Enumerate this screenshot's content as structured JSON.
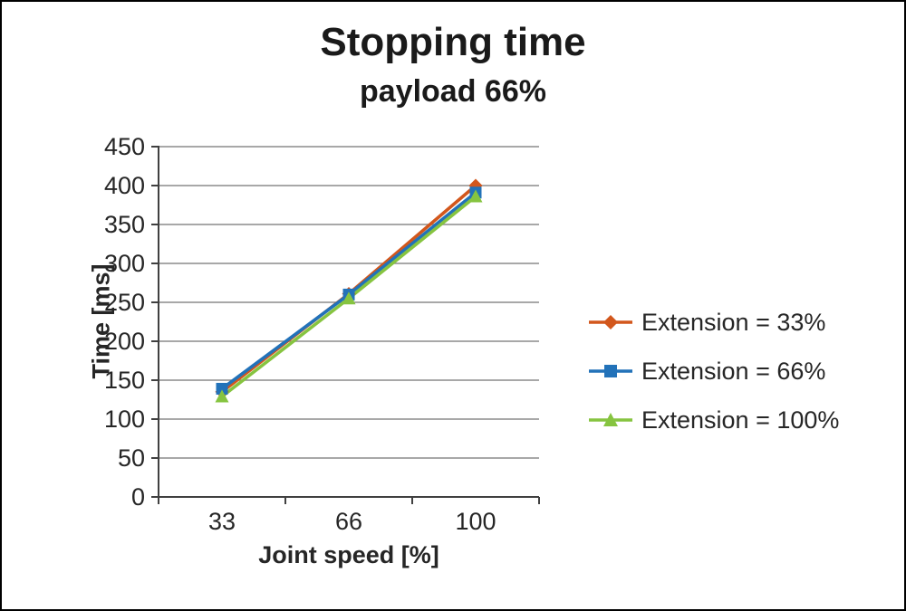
{
  "chart_data": {
    "type": "line",
    "title": "Stopping time",
    "subtitle": "payload 66%",
    "xlabel": "Joint speed [%]",
    "ylabel": "Time [ms]",
    "categories": [
      "33",
      "66",
      "100"
    ],
    "series": [
      {
        "name": "Extension = 33%",
        "marker": "diamond",
        "color": "#D2571C",
        "values": [
          135,
          261,
          400
        ]
      },
      {
        "name": "Extension = 66%",
        "marker": "square",
        "color": "#2272B9",
        "values": [
          139,
          260,
          391
        ]
      },
      {
        "name": "Extension = 100%",
        "marker": "triangle",
        "color": "#86C440",
        "values": [
          129,
          255,
          386
        ]
      }
    ],
    "ylim": [
      0,
      450
    ],
    "ytick_step": 50,
    "grid": true,
    "legend_position": "right",
    "colors": {
      "text": "#262626",
      "gridline": "#8C8C8C",
      "axis": "#404040"
    }
  }
}
